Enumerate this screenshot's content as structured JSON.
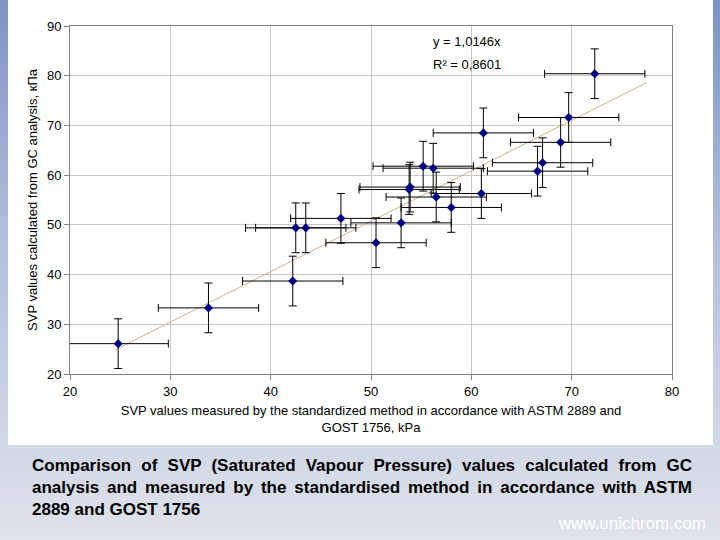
{
  "chart_data": {
    "type": "scatter",
    "x_label": [
      "SVP values measured by the standardized method in accordance with ASTM 2889 and",
      "GOST 1756, kPa"
    ],
    "y_label": "SVP values calculated from GC analysis, кПа",
    "annotations": [
      "y = 1,0146x",
      "R² = 0,8601"
    ],
    "caption": "Comparison of SVP (Saturated Vapour Pressure) values calculated from GC analysis and measured by the standardised method in accordance with ASTM 2889 and GOST 1756",
    "source": "www.unichrom.com",
    "marker": "diamond",
    "color": "#000080",
    "grid": true,
    "x": [
      24.8,
      33.8,
      42.2,
      42.5,
      43.5,
      47.0,
      50.5,
      53.0,
      53.8,
      53.9,
      55.2,
      56.2,
      56.5,
      58.0,
      61.2,
      61.0,
      66.6,
      67.1,
      68.9,
      69.7,
      72.3
    ],
    "values": [
      26.1,
      33.3,
      38.7,
      49.4,
      49.4,
      51.3,
      46.4,
      50.4,
      57.1,
      57.6,
      61.8,
      61.4,
      55.6,
      53.5,
      68.5,
      56.3,
      60.8,
      62.5,
      66.6,
      71.6,
      80.4
    ],
    "x_errors": [
      5,
      5,
      5,
      5,
      5,
      5,
      5,
      5,
      5,
      5,
      5,
      5,
      5,
      5,
      5,
      5,
      5,
      5,
      5,
      5,
      5
    ],
    "y_errors": [
      5,
      5,
      5,
      5,
      5,
      5,
      5,
      5,
      5,
      5,
      5,
      5,
      5,
      5,
      5,
      5,
      5,
      5,
      5,
      5,
      5
    ],
    "trendline": {
      "slope": 1.0146,
      "x": [
        24.5,
        77.5
      ],
      "color": "#c8b48c",
      "line_style": "solid"
    },
    "xlim": [
      20,
      80
    ],
    "xticks": [
      20,
      30,
      40,
      50,
      60,
      70,
      80
    ],
    "ylim": [
      20,
      90
    ],
    "yticks": [
      20,
      30,
      40,
      50,
      60,
      70,
      80,
      90
    ]
  }
}
